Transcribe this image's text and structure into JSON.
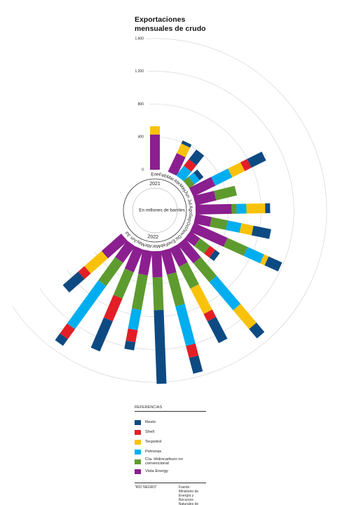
{
  "chart_data": {
    "type": "radial_stacked_bar",
    "title": "Exportaciones mensuales de crudo",
    "center_label": "En millones de barriles",
    "years": [
      "2021",
      "2022"
    ],
    "categories": [
      "Ene",
      "Feb",
      "Mar",
      "Abr",
      "May",
      "Jun",
      "Jul",
      "Ago",
      "Sep",
      "Oct",
      "Nov",
      "Dic",
      "Ene",
      "Feb",
      "Mar",
      "Abr",
      "May",
      "Jun",
      "Jul"
    ],
    "ylim": [
      0,
      1600
    ],
    "yticks": [
      0,
      400,
      800,
      {
        "value": 1200,
        "label": "1.200"
      },
      {
        "value": 1600,
        "label": "1.600"
      }
    ],
    "grid": true,
    "legend_title": "REFERENCIAS",
    "series": [
      {
        "name": "Resto",
        "color": "#0e4a82",
        "values": [
          0,
          0,
          40,
          150,
          60,
          200,
          0,
          60,
          220,
          180,
          70,
          150,
          300,
          200,
          900,
          100,
          400,
          100,
          250
        ]
      },
      {
        "name": "Shell",
        "color": "#e31e26",
        "values": [
          0,
          0,
          0,
          100,
          0,
          90,
          0,
          0,
          0,
          0,
          80,
          0,
          100,
          150,
          0,
          150,
          300,
          150,
          100
        ]
      },
      {
        "name": "Tecpetrol",
        "color": "#f9c20a",
        "values": [
          100,
          0,
          130,
          0,
          0,
          170,
          0,
          230,
          150,
          60,
          0,
          300,
          350,
          0,
          0,
          0,
          0,
          0,
          280
        ]
      },
      {
        "name": "Petronas",
        "color": "#00aeef",
        "values": [
          0,
          0,
          0,
          150,
          80,
          230,
          0,
          120,
          170,
          220,
          0,
          450,
          0,
          500,
          0,
          250,
          0,
          650,
          0
        ]
      },
      {
        "name": "Cía. Hidrocarburo no convencional",
        "color": "#5e9b2f",
        "values": [
          0,
          0,
          0,
          0,
          80,
          0,
          260,
          60,
          200,
          270,
          150,
          300,
          300,
          400,
          400,
          430,
          350,
          350,
          0
        ]
      },
      {
        "name": "Vista Energy",
        "color": "#8b1f8f",
        "values": [
          430,
          0,
          250,
          0,
          0,
          300,
          260,
          440,
          200,
          450,
          150,
          300,
          250,
          300,
          320,
          300,
          300,
          250,
          320
        ]
      }
    ],
    "credit": "“RÍO NEGRO”",
    "source": "Fuente: Ministerio de Energía y Recursos Naturales de neuquén."
  }
}
